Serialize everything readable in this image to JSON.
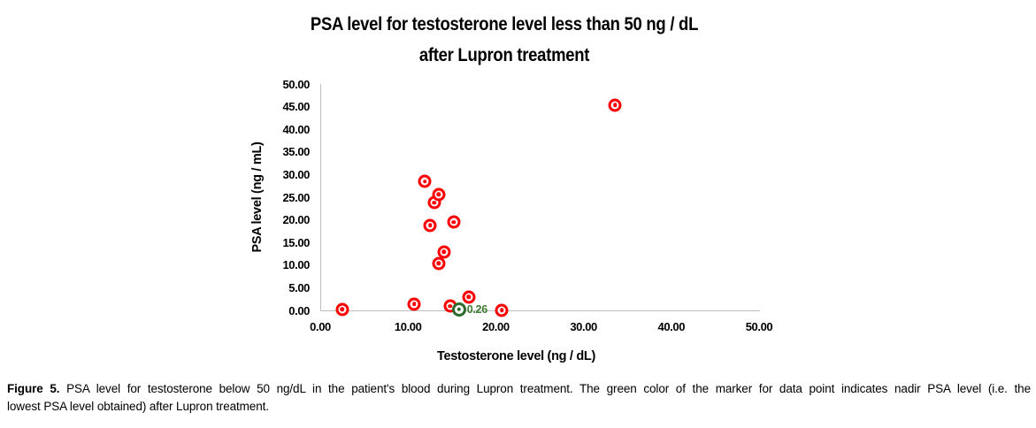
{
  "chart": {
    "title_line1": "PSA level for testosterone level less than 50 ng / dL",
    "title_line2": "after Lupron treatment",
    "x_axis_title": "Testosterone level (ng / dL)",
    "y_axis_title": "PSA level (ng / mL)"
  },
  "chart_data": {
    "type": "scatter",
    "title": "PSA level for testosterone level less than 50 ng / dL after Lupron treatment",
    "xlabel": "Testosterone level (ng / dL)",
    "ylabel": "PSA level (ng / mL)",
    "xlim": [
      0,
      50
    ],
    "ylim": [
      0,
      50
    ],
    "x_tick_labels": [
      "0.00",
      "10.00",
      "20.00",
      "30.00",
      "40.00",
      "50.00"
    ],
    "y_tick_labels_top_to_bottom": [
      "50.00",
      "45.00",
      "40.00",
      "35.00",
      "30.00",
      "25.00",
      "20.00",
      "15.00",
      "10.00",
      "5.00",
      "0.00"
    ],
    "grid": false,
    "legend": "none",
    "series": [
      {
        "name": "psa-data-points-red",
        "marker": "ring-dot",
        "color": "#FF0000",
        "points": [
          {
            "x": 2.4,
            "y": 0.2
          },
          {
            "x": 10.6,
            "y": 1.4
          },
          {
            "x": 11.8,
            "y": 28.5
          },
          {
            "x": 12.4,
            "y": 18.8
          },
          {
            "x": 12.9,
            "y": 23.8
          },
          {
            "x": 13.4,
            "y": 25.6
          },
          {
            "x": 13.4,
            "y": 10.4
          },
          {
            "x": 14.0,
            "y": 12.9
          },
          {
            "x": 14.7,
            "y": 0.9
          },
          {
            "x": 15.1,
            "y": 19.5
          },
          {
            "x": 16.8,
            "y": 3.0
          },
          {
            "x": 20.6,
            "y": 0.1
          },
          {
            "x": 33.5,
            "y": 45.4
          }
        ]
      },
      {
        "name": "nadir-psa-point-green",
        "marker": "ring-dot",
        "color": "#2D6A2D",
        "points": [
          {
            "x": 15.7,
            "y": 0.26,
            "label": "0.26"
          }
        ]
      }
    ]
  },
  "caption": {
    "figure_label": "Figure 5.",
    "line1_rest": "PSA level for testosterone below 50 ng/dL in the patient's blood during Lupron treatment. The green color of the marker for data point indicates nadir PSA level (i.e. the",
    "line2": "lowest PSA level obtained) after Lupron treatment."
  },
  "colors": {
    "axis_line": "#BFBFBF",
    "text": "#000000",
    "red_marker": "#FF0000",
    "green_marker": "#2D6A2D",
    "green_label_text": "#3C7D32"
  }
}
